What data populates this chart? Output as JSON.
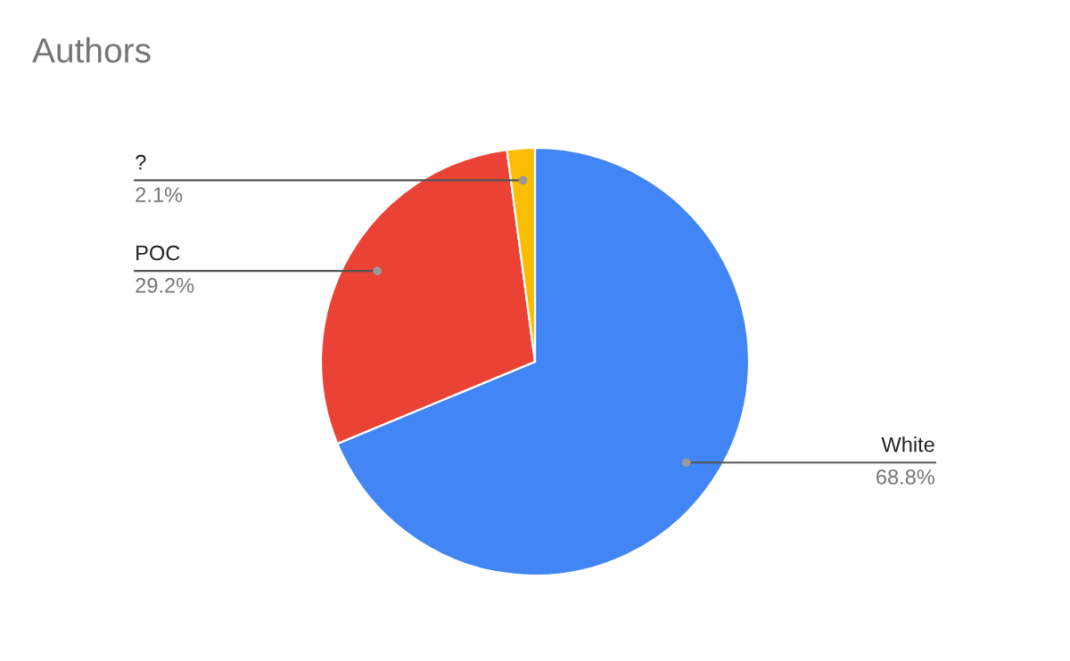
{
  "chart_data": {
    "type": "pie",
    "title": "Authors",
    "categories": [
      "White",
      "POC",
      "?"
    ],
    "values": [
      68.8,
      29.2,
      2.1
    ],
    "colors": [
      "#4285f4",
      "#ea4335",
      "#fbbc04"
    ],
    "value_labels": [
      "68.8%",
      "29.2%",
      "2.1%"
    ],
    "legend": false
  }
}
